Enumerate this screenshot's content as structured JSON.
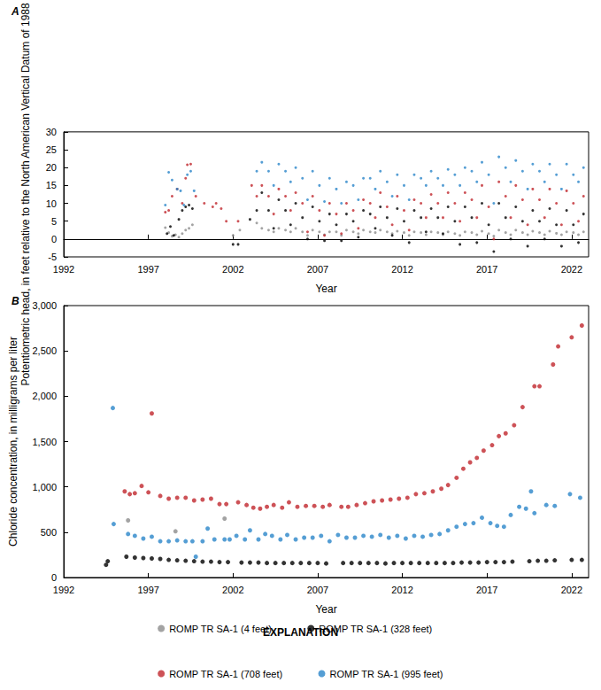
{
  "chart_data": [
    {
      "type": "scatter",
      "title": "A",
      "x_label": "Year",
      "y_label": "Potentiometric head, in feet relative to the North American Vertical Datum of 1988",
      "xlim": [
        1992,
        2023
      ],
      "xticks": [
        1992,
        1997,
        2002,
        2007,
        2012,
        2017,
        2022
      ],
      "ylim": [
        -5,
        30
      ],
      "yticks": [
        -5,
        0,
        5,
        10,
        15,
        20,
        25,
        30
      ],
      "grid": false,
      "series": [
        {
          "name": "ROMP TR SA-1 (4 feet)",
          "color": "#8c8c8c",
          "x": [
            1998.0,
            1998.2,
            1998.4,
            1998.6,
            1998.8,
            1999.0,
            1999.2,
            1999.4,
            1999.6,
            2002.0,
            2002.4,
            2003.4,
            2003.7,
            2004.1,
            2004.4,
            2004.7,
            2005.1,
            2005.4,
            2005.7,
            2006.1,
            2006.4,
            2006.7,
            2007.1,
            2007.4,
            2007.7,
            2008.1,
            2008.4,
            2008.7,
            2009.1,
            2009.4,
            2009.7,
            2010.1,
            2010.4,
            2010.7,
            2011.1,
            2011.4,
            2011.7,
            2012.1,
            2012.4,
            2012.7,
            2013.1,
            2013.4,
            2013.7,
            2014.1,
            2014.4,
            2014.7,
            2015.1,
            2015.4,
            2015.7,
            2016.1,
            2016.4,
            2016.7,
            2017.1,
            2017.4,
            2017.7,
            2018.1,
            2018.4,
            2018.7,
            2019.1,
            2019.4,
            2019.7,
            2020.1,
            2020.4,
            2020.7,
            2021.1,
            2021.4,
            2021.7,
            2022.1,
            2022.4,
            2022.7
          ],
          "values": [
            3.2,
            1.8,
            0.8,
            1.2,
            0.5,
            1.5,
            2.5,
            3.0,
            4.0,
            1.0,
            2.5,
            4.5,
            3,
            2.5,
            2,
            3,
            2.5,
            2,
            3,
            2,
            1,
            2.5,
            2,
            1.2,
            2,
            2,
            1,
            2.5,
            2,
            1.5,
            2.5,
            2,
            1.8,
            2.5,
            2,
            1.5,
            2.2,
            1.8,
            1,
            2,
            1.8,
            1.2,
            2,
            1.8,
            1.2,
            2,
            1.5,
            1,
            2,
            1.8,
            1.2,
            2.2,
            1.5,
            0.8,
            2.5,
            1.8,
            1.2,
            2.5,
            1.8,
            1.2,
            2.2,
            1.8,
            1.2,
            2.2,
            1.6,
            1.2,
            2,
            1.8,
            1.2,
            2
          ]
        },
        {
          "name": "ROMP TR SA-1 (328 feet)",
          "color": "#000000",
          "x": [
            1998.1,
            1998.3,
            1998.5,
            1998.8,
            1999.0,
            1999.2,
            1999.4,
            1999.6,
            2002.0,
            2002.3,
            2003.0,
            2003.4,
            2003.7,
            2004.1,
            2004.4,
            2004.7,
            2005.1,
            2005.4,
            2005.7,
            2006.1,
            2006.4,
            2006.7,
            2007.1,
            2007.4,
            2007.7,
            2008.1,
            2008.4,
            2008.7,
            2009.1,
            2009.4,
            2009.7,
            2010.1,
            2010.4,
            2010.7,
            2011.1,
            2011.4,
            2011.7,
            2012.1,
            2012.4,
            2012.7,
            2013.1,
            2013.4,
            2013.7,
            2014.1,
            2014.4,
            2014.7,
            2015.1,
            2015.4,
            2015.7,
            2016.1,
            2016.4,
            2016.7,
            2017.1,
            2017.4,
            2017.7,
            2018.1,
            2018.4,
            2018.7,
            2019.1,
            2019.4,
            2019.7,
            2020.1,
            2020.4,
            2020.7,
            2021.1,
            2021.4,
            2021.7,
            2022.1,
            2022.4,
            2022.7
          ],
          "values": [
            1.5,
            3.5,
            1.0,
            5.5,
            8.0,
            9.0,
            9.5,
            8.5,
            -1.5,
            -1.5,
            5.5,
            8,
            13,
            8,
            3,
            11,
            8,
            4,
            10,
            6,
            0,
            9,
            5,
            -0.5,
            7,
            4,
            -0.5,
            7,
            5,
            0.5,
            8,
            7,
            3,
            9,
            6,
            1,
            8.5,
            5,
            -1,
            8,
            6,
            2,
            8.5,
            6,
            1.5,
            9,
            5,
            -1.5,
            9,
            6,
            -1,
            10,
            4,
            -3.5,
            10,
            6,
            0,
            9,
            5,
            -2,
            8,
            5,
            0,
            8.5,
            4,
            -2,
            8,
            4,
            -1,
            7
          ]
        },
        {
          "name": "ROMP TR SA-1 (708 feet)",
          "color": "#c1272d",
          "x": [
            1998.0,
            1998.2,
            1998.4,
            1998.7,
            1999.0,
            1999.2,
            1999.3,
            1999.5,
            1999.8,
            2000.3,
            2000.8,
            2001.0,
            2001.3,
            2001.6,
            2002.3,
            2003.1,
            2003.4,
            2003.7,
            2004.1,
            2004.4,
            2004.7,
            2005.1,
            2005.4,
            2005.7,
            2006.1,
            2006.4,
            2006.7,
            2007.1,
            2007.4,
            2007.7,
            2008.1,
            2008.4,
            2008.7,
            2009.1,
            2009.4,
            2009.7,
            2010.1,
            2010.4,
            2010.7,
            2011.1,
            2011.4,
            2011.7,
            2012.1,
            2012.4,
            2012.7,
            2013.1,
            2013.4,
            2013.7,
            2014.1,
            2014.4,
            2014.7,
            2015.1,
            2015.4,
            2015.7,
            2016.1,
            2016.4,
            2016.7,
            2017.1,
            2017.4,
            2017.7,
            2018.1,
            2018.4,
            2018.7,
            2019.1,
            2019.4,
            2019.7,
            2020.1,
            2020.4,
            2020.7,
            2021.1,
            2021.4,
            2021.7,
            2022.1,
            2022.4,
            2022.7
          ],
          "values": [
            7.5,
            8,
            12,
            14,
            10,
            17,
            20.8,
            21,
            12,
            10,
            9,
            10,
            8.5,
            5,
            5,
            15,
            12,
            15,
            12,
            7,
            14,
            12,
            8,
            13,
            10,
            2,
            12,
            8,
            1,
            10,
            7,
            1.5,
            10,
            8,
            3,
            11,
            10,
            6,
            13,
            9,
            4,
            12,
            8,
            2.5,
            11,
            10,
            6,
            12.5,
            10,
            6,
            13,
            10,
            5,
            13,
            11,
            6,
            15,
            9,
            0,
            16,
            12,
            6,
            15,
            11,
            4,
            14,
            11,
            6,
            14,
            10,
            4,
            13.5,
            10,
            5,
            12
          ]
        },
        {
          "name": "ROMP TR SA-1 (995 feet)",
          "color": "#2a86c9",
          "x": [
            1998.0,
            1998.2,
            1998.4,
            1998.7,
            1998.9,
            1999.1,
            1999.3,
            1999.5,
            1999.7,
            2003.4,
            2003.7,
            2004.1,
            2004.4,
            2004.7,
            2005.1,
            2005.4,
            2005.7,
            2006.1,
            2006.4,
            2006.7,
            2007.1,
            2007.4,
            2007.7,
            2008.1,
            2008.4,
            2008.7,
            2009.1,
            2009.4,
            2009.7,
            2010.1,
            2010.4,
            2010.7,
            2011.1,
            2011.4,
            2011.7,
            2012.1,
            2012.4,
            2012.7,
            2013.1,
            2013.4,
            2013.7,
            2014.1,
            2014.4,
            2014.7,
            2015.1,
            2015.4,
            2015.7,
            2016.1,
            2016.4,
            2016.7,
            2017.1,
            2017.4,
            2017.7,
            2018.1,
            2018.4,
            2018.7,
            2019.1,
            2019.4,
            2019.7,
            2020.1,
            2020.4,
            2020.7,
            2021.1,
            2021.4,
            2021.7,
            2022.1,
            2022.4,
            2022.7
          ],
          "values": [
            9.5,
            18.7,
            16.5,
            14,
            13.5,
            9.5,
            18,
            19,
            13.5,
            19,
            21.5,
            19,
            15,
            21,
            19,
            16,
            20,
            17,
            11,
            19,
            15,
            10.5,
            17,
            14,
            10,
            16,
            15,
            11,
            17,
            17,
            14,
            19,
            16,
            12,
            18,
            15,
            11,
            18,
            17,
            15,
            19,
            17,
            15,
            19.5,
            18,
            15,
            20,
            19,
            16,
            21.5,
            18,
            10,
            23,
            20,
            16,
            22,
            19,
            14,
            21,
            19,
            16,
            21,
            18,
            14,
            21,
            18,
            16,
            20
          ]
        }
      ]
    },
    {
      "type": "scatter",
      "title": "B",
      "x_label": "Year",
      "y_label": "Chloride concentration, in milligrams per liter",
      "xlim": [
        1992,
        2023
      ],
      "xticks": [
        1992,
        1997,
        2002,
        2007,
        2012,
        2017,
        2022
      ],
      "ylim": [
        0,
        3000
      ],
      "yticks": [
        0,
        500,
        {
          "value": 1000,
          "label": "1,000"
        },
        {
          "value": 1500,
          "label": "1,500"
        },
        {
          "value": 2000,
          "label": "2,000"
        },
        {
          "value": 2500,
          "label": "2,500"
        },
        {
          "value": 3000,
          "label": "3,000"
        }
      ],
      "grid": false,
      "legend": "bottom",
      "legend_title": "EXPLANATION",
      "series": [
        {
          "name": "ROMP TR SA-1 (4 feet)",
          "color": "#8c8c8c",
          "x": [
            1995.8,
            1998.6,
            2001.5
          ],
          "values": [
            630,
            510,
            650
          ]
        },
        {
          "name": "ROMP TR SA-1 (328 feet)",
          "color": "#000000",
          "x": [
            1994.5,
            1994.6,
            1995.7,
            1996.2,
            1996.7,
            1997.2,
            1997.7,
            1998.2,
            1998.7,
            1999.2,
            1999.7,
            2000.2,
            2000.7,
            2001.2,
            2001.7,
            2002.5,
            2003.0,
            2003.5,
            2004.0,
            2004.5,
            2005.0,
            2005.5,
            2006.0,
            2006.5,
            2007.0,
            2007.5,
            2008.5,
            2009.0,
            2009.5,
            2010.0,
            2010.5,
            2011.0,
            2011.5,
            2012.0,
            2012.5,
            2013.0,
            2013.5,
            2014.0,
            2014.5,
            2015.0,
            2015.5,
            2016.0,
            2016.5,
            2017.0,
            2017.5,
            2018.0,
            2018.5,
            2019.5,
            2020.0,
            2020.5,
            2021.0,
            2022.0,
            2022.6
          ],
          "values": [
            140,
            180,
            230,
            220,
            215,
            210,
            205,
            195,
            190,
            185,
            180,
            175,
            175,
            170,
            170,
            165,
            165,
            165,
            160,
            160,
            160,
            160,
            160,
            160,
            160,
            155,
            160,
            160,
            160,
            160,
            160,
            155,
            160,
            160,
            160,
            160,
            160,
            160,
            160,
            160,
            165,
            165,
            165,
            170,
            170,
            170,
            175,
            180,
            185,
            185,
            190,
            195,
            195
          ]
        },
        {
          "name": "ROMP TR SA-1 (708 feet)",
          "color": "#c1272d",
          "x": [
            1995.6,
            1995.9,
            1996.2,
            1996.6,
            1997.0,
            1997.2,
            1997.7,
            1998.2,
            1998.7,
            1999.2,
            1999.7,
            2000.2,
            2000.7,
            2001.2,
            2001.6,
            2002.3,
            2002.8,
            2003.2,
            2003.6,
            2004.0,
            2004.4,
            2004.9,
            2005.3,
            2005.8,
            2006.3,
            2006.8,
            2007.3,
            2007.7,
            2008.4,
            2008.8,
            2009.3,
            2009.8,
            2010.3,
            2010.8,
            2011.3,
            2011.8,
            2012.3,
            2012.8,
            2013.3,
            2013.8,
            2014.3,
            2014.7,
            2015.2,
            2015.6,
            2016.0,
            2016.4,
            2016.8,
            2017.3,
            2017.7,
            2018.1,
            2018.6,
            2019.1,
            2019.8,
            2020.1,
            2020.9,
            2021.2,
            2022.0,
            2022.6
          ],
          "values": [
            950,
            920,
            930,
            1010,
            940,
            1810,
            900,
            870,
            880,
            880,
            850,
            860,
            870,
            810,
            810,
            830,
            800,
            770,
            760,
            780,
            800,
            770,
            830,
            780,
            790,
            790,
            780,
            800,
            780,
            780,
            800,
            820,
            840,
            850,
            860,
            870,
            880,
            920,
            930,
            950,
            980,
            1020,
            1100,
            1200,
            1270,
            1320,
            1400,
            1460,
            1560,
            1590,
            1680,
            1880,
            2110,
            2110,
            2350,
            2550,
            2650,
            2780
          ]
        },
        {
          "name": "ROMP TR SA-1 (995 feet)",
          "color": "#2a86c9",
          "x": [
            1994.9,
            1994.95,
            1995.8,
            1996.2,
            1996.7,
            1997.2,
            1997.7,
            1998.2,
            1998.7,
            1999.2,
            1999.6,
            1999.8,
            2000.2,
            2000.5,
            2000.9,
            2001.5,
            2001.8,
            2002.2,
            2002.7,
            2003.0,
            2003.5,
            2003.9,
            2004.3,
            2004.8,
            2005.2,
            2005.7,
            2006.2,
            2006.7,
            2007.2,
            2007.7,
            2008.2,
            2008.7,
            2009.2,
            2009.7,
            2010.2,
            2010.7,
            2011.2,
            2011.7,
            2012.2,
            2012.7,
            2013.2,
            2013.7,
            2014.2,
            2014.7,
            2015.2,
            2015.7,
            2016.2,
            2016.7,
            2017.2,
            2017.6,
            2018.0,
            2018.4,
            2018.9,
            2019.3,
            2019.6,
            2019.8,
            2020.5,
            2021.0,
            2021.9,
            2022.5
          ],
          "values": [
            1870,
            590,
            480,
            460,
            430,
            450,
            400,
            400,
            410,
            400,
            400,
            230,
            400,
            540,
            420,
            420,
            420,
            460,
            420,
            520,
            420,
            480,
            460,
            420,
            470,
            420,
            440,
            440,
            460,
            400,
            470,
            440,
            440,
            460,
            450,
            470,
            440,
            460,
            430,
            460,
            450,
            470,
            480,
            520,
            560,
            590,
            600,
            660,
            600,
            570,
            560,
            690,
            780,
            760,
            950,
            710,
            800,
            790,
            920,
            880
          ]
        }
      ]
    }
  ]
}
